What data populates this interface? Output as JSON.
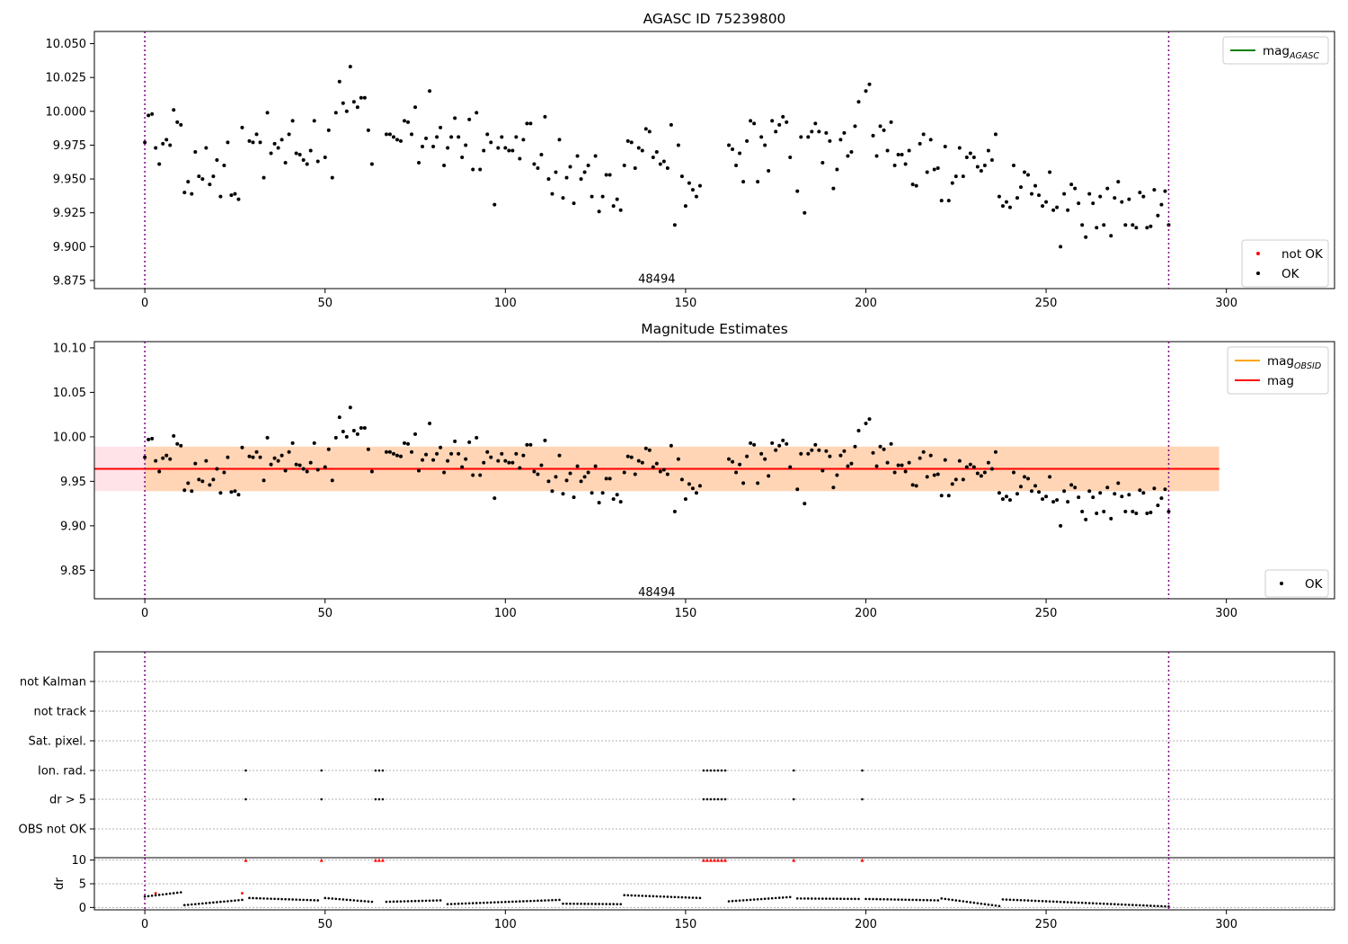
{
  "chart_data": [
    {
      "type": "scatter",
      "title": "AGASC ID 75239800",
      "xlim": [
        -14,
        330
      ],
      "ylim": [
        9.869,
        10.059
      ],
      "xticks": [
        0,
        50,
        100,
        150,
        200,
        250,
        300
      ],
      "yticks": [
        "9.875",
        "9.900",
        "9.925",
        "9.950",
        "9.975",
        "10.000",
        "10.025",
        "10.050"
      ],
      "vlines": [
        0,
        284
      ],
      "annotation": {
        "text": "48494",
        "x": 142,
        "y": 9.876
      },
      "legends": [
        {
          "position": "upper right",
          "entries": [
            {
              "label": "mag",
              "sub": "AGASC",
              "kind": "line",
              "color": "#008000"
            }
          ]
        },
        {
          "position": "lower right",
          "entries": [
            {
              "label": "not OK",
              "kind": "marker",
              "color": "#ff0000"
            },
            {
              "label": "OK",
              "kind": "marker",
              "color": "#000000"
            }
          ]
        }
      ],
      "series": [
        {
          "name": "OK",
          "color": "#000000",
          "points_ref": "mag_points"
        }
      ]
    },
    {
      "type": "scatter",
      "title": "Magnitude Estimates",
      "xlim": [
        -14,
        330
      ],
      "ylim": [
        9.818,
        10.107
      ],
      "xticks": [
        0,
        50,
        100,
        150,
        200,
        250,
        300
      ],
      "yticks": [
        "9.85",
        "9.90",
        "9.95",
        "10.00",
        "10.05",
        "10.10"
      ],
      "vlines": [
        0,
        284
      ],
      "annotation": {
        "text": "48494",
        "x": 142,
        "y": 9.825
      },
      "band": {
        "x0": -14,
        "x1": 298,
        "y0": 9.939,
        "y1": 9.989
      },
      "inner_band": {
        "x0": 0,
        "x1": 298
      },
      "mag_line": {
        "y": 9.964,
        "x0": -14,
        "x1": 298
      },
      "legends": [
        {
          "position": "upper right",
          "entries": [
            {
              "label": "mag",
              "sub": "OBSID",
              "kind": "line",
              "color": "#ffa500"
            },
            {
              "label": "mag",
              "kind": "line",
              "color": "#ff0000"
            }
          ]
        },
        {
          "position": "lower right",
          "entries": [
            {
              "label": "OK",
              "kind": "marker",
              "color": "#000000"
            }
          ]
        }
      ],
      "series": [
        {
          "name": "OK",
          "color": "#000000",
          "points_ref": "mag_points"
        }
      ]
    },
    {
      "type": "scatter",
      "xlim": [
        -14,
        330
      ],
      "categories": [
        "not Kalman",
        "not track",
        "Sat. pixel.",
        "Ion. rad.",
        "dr > 5",
        "OBS not OK"
      ],
      "flag_points": {
        "Ion. rad.": [
          28,
          49,
          64,
          65,
          66,
          155,
          156,
          157,
          158,
          159,
          160,
          161,
          180,
          199
        ],
        "dr > 5": [
          28,
          49,
          64,
          65,
          66,
          155,
          156,
          157,
          158,
          159,
          160,
          161,
          180,
          199
        ]
      },
      "vlines": [
        0,
        284
      ]
    },
    {
      "type": "scatter",
      "ylabel": "dr",
      "xlim": [
        -14,
        330
      ],
      "ylim": [
        -0.5,
        10.5
      ],
      "xticks": [
        0,
        50,
        100,
        150,
        200,
        250,
        300
      ],
      "yticks": [
        "0",
        "5",
        "10"
      ],
      "vlines": [
        0,
        284
      ],
      "capped": {
        "y": 10,
        "color": "#ff0000",
        "x": [
          28,
          49,
          64,
          65,
          66,
          155,
          156,
          157,
          158,
          159,
          160,
          161,
          180,
          199
        ]
      },
      "segments": [
        {
          "x0": 0,
          "x1": 10,
          "y0": 2.3,
          "y1": 3.2
        },
        {
          "x0": 11,
          "x1": 27,
          "y0": 0.5,
          "y1": 1.6
        },
        {
          "x0": 29,
          "x1": 48,
          "y0": 2.0,
          "y1": 1.5
        },
        {
          "x0": 50,
          "x1": 63,
          "y0": 2.0,
          "y1": 1.2
        },
        {
          "x0": 67,
          "x1": 82,
          "y0": 1.2,
          "y1": 1.5
        },
        {
          "x0": 84,
          "x1": 115,
          "y0": 0.7,
          "y1": 1.6
        },
        {
          "x0": 116,
          "x1": 132,
          "y0": 0.8,
          "y1": 0.7
        },
        {
          "x0": 133,
          "x1": 154,
          "y0": 2.6,
          "y1": 2.0
        },
        {
          "x0": 162,
          "x1": 179,
          "y0": 1.3,
          "y1": 2.2
        },
        {
          "x0": 181,
          "x1": 198,
          "y0": 1.9,
          "y1": 1.8
        },
        {
          "x0": 200,
          "x1": 220,
          "y0": 1.8,
          "y1": 1.5
        },
        {
          "x0": 221,
          "x1": 237,
          "y0": 1.9,
          "y1": 0.3
        },
        {
          "x0": 238,
          "x1": 284,
          "y0": 1.7,
          "y1": 0.2
        }
      ],
      "red_points": [
        [
          3,
          3.0
        ],
        [
          27,
          3.0
        ]
      ]
    }
  ],
  "mag_points": [
    [
      0,
      9.977
    ],
    [
      1,
      9.997
    ],
    [
      2,
      9.998
    ],
    [
      3,
      9.973
    ],
    [
      4,
      9.961
    ],
    [
      5,
      9.976
    ],
    [
      6,
      9.979
    ],
    [
      7,
      9.975
    ],
    [
      8,
      10.001
    ],
    [
      9,
      9.992
    ],
    [
      10,
      9.99
    ],
    [
      11,
      9.94
    ],
    [
      12,
      9.948
    ],
    [
      13,
      9.939
    ],
    [
      14,
      9.97
    ],
    [
      15,
      9.952
    ],
    [
      16,
      9.95
    ],
    [
      17,
      9.973
    ],
    [
      18,
      9.946
    ],
    [
      19,
      9.952
    ],
    [
      20,
      9.964
    ],
    [
      21,
      9.937
    ],
    [
      22,
      9.96
    ],
    [
      23,
      9.977
    ],
    [
      24,
      9.938
    ],
    [
      25,
      9.939
    ],
    [
      26,
      9.935
    ],
    [
      27,
      9.988
    ],
    [
      29,
      9.978
    ],
    [
      30,
      9.977
    ],
    [
      31,
      9.983
    ],
    [
      32,
      9.977
    ],
    [
      33,
      9.951
    ],
    [
      34,
      9.999
    ],
    [
      35,
      9.969
    ],
    [
      36,
      9.976
    ],
    [
      37,
      9.973
    ],
    [
      38,
      9.979
    ],
    [
      39,
      9.962
    ],
    [
      40,
      9.983
    ],
    [
      41,
      9.993
    ],
    [
      42,
      9.969
    ],
    [
      43,
      9.968
    ],
    [
      44,
      9.964
    ],
    [
      45,
      9.961
    ],
    [
      46,
      9.971
    ],
    [
      47,
      9.993
    ],
    [
      48,
      9.963
    ],
    [
      50,
      9.966
    ],
    [
      51,
      9.986
    ],
    [
      52,
      9.951
    ],
    [
      53,
      9.999
    ],
    [
      54,
      10.022
    ],
    [
      55,
      10.006
    ],
    [
      56,
      10.0
    ],
    [
      57,
      10.033
    ],
    [
      58,
      10.007
    ],
    [
      59,
      10.003
    ],
    [
      60,
      10.01
    ],
    [
      61,
      10.01
    ],
    [
      62,
      9.986
    ],
    [
      63,
      9.961
    ],
    [
      67,
      9.983
    ],
    [
      68,
      9.983
    ],
    [
      69,
      9.981
    ],
    [
      70,
      9.979
    ],
    [
      71,
      9.978
    ],
    [
      72,
      9.993
    ],
    [
      73,
      9.992
    ],
    [
      74,
      9.983
    ],
    [
      75,
      10.003
    ],
    [
      76,
      9.962
    ],
    [
      77,
      9.974
    ],
    [
      78,
      9.98
    ],
    [
      79,
      10.015
    ],
    [
      80,
      9.974
    ],
    [
      81,
      9.981
    ],
    [
      82,
      9.988
    ],
    [
      83,
      9.96
    ],
    [
      84,
      9.973
    ],
    [
      85,
      9.981
    ],
    [
      86,
      9.995
    ],
    [
      87,
      9.981
    ],
    [
      88,
      9.966
    ],
    [
      89,
      9.975
    ],
    [
      90,
      9.994
    ],
    [
      91,
      9.957
    ],
    [
      92,
      9.999
    ],
    [
      93,
      9.957
    ],
    [
      94,
      9.971
    ],
    [
      95,
      9.983
    ],
    [
      96,
      9.977
    ],
    [
      97,
      9.931
    ],
    [
      98,
      9.973
    ],
    [
      99,
      9.981
    ],
    [
      100,
      9.973
    ],
    [
      101,
      9.971
    ],
    [
      102,
      9.971
    ],
    [
      103,
      9.981
    ],
    [
      104,
      9.965
    ],
    [
      105,
      9.979
    ],
    [
      106,
      9.991
    ],
    [
      107,
      9.991
    ],
    [
      108,
      9.961
    ],
    [
      109,
      9.958
    ],
    [
      110,
      9.968
    ],
    [
      111,
      9.996
    ],
    [
      112,
      9.95
    ],
    [
      113,
      9.939
    ],
    [
      114,
      9.955
    ],
    [
      115,
      9.979
    ],
    [
      116,
      9.936
    ],
    [
      117,
      9.951
    ],
    [
      118,
      9.959
    ],
    [
      119,
      9.932
    ],
    [
      120,
      9.967
    ],
    [
      121,
      9.95
    ],
    [
      122,
      9.955
    ],
    [
      123,
      9.96
    ],
    [
      124,
      9.937
    ],
    [
      125,
      9.967
    ],
    [
      126,
      9.926
    ],
    [
      127,
      9.937
    ],
    [
      128,
      9.953
    ],
    [
      129,
      9.953
    ],
    [
      130,
      9.93
    ],
    [
      131,
      9.935
    ],
    [
      132,
      9.927
    ],
    [
      133,
      9.96
    ],
    [
      134,
      9.978
    ],
    [
      135,
      9.977
    ],
    [
      136,
      9.958
    ],
    [
      137,
      9.973
    ],
    [
      138,
      9.971
    ],
    [
      139,
      9.987
    ],
    [
      140,
      9.985
    ],
    [
      141,
      9.966
    ],
    [
      142,
      9.97
    ],
    [
      143,
      9.961
    ],
    [
      144,
      9.963
    ],
    [
      145,
      9.958
    ],
    [
      146,
      9.99
    ],
    [
      147,
      9.916
    ],
    [
      148,
      9.975
    ],
    [
      149,
      9.952
    ],
    [
      150,
      9.93
    ],
    [
      151,
      9.947
    ],
    [
      152,
      9.942
    ],
    [
      153,
      9.937
    ],
    [
      154,
      9.945
    ],
    [
      162,
      9.975
    ],
    [
      163,
      9.972
    ],
    [
      164,
      9.96
    ],
    [
      165,
      9.969
    ],
    [
      166,
      9.948
    ],
    [
      167,
      9.978
    ],
    [
      168,
      9.993
    ],
    [
      169,
      9.991
    ],
    [
      170,
      9.948
    ],
    [
      171,
      9.981
    ],
    [
      172,
      9.975
    ],
    [
      173,
      9.956
    ],
    [
      174,
      9.993
    ],
    [
      175,
      9.985
    ],
    [
      176,
      9.99
    ],
    [
      177,
      9.996
    ],
    [
      178,
      9.992
    ],
    [
      179,
      9.966
    ],
    [
      181,
      9.941
    ],
    [
      182,
      9.981
    ],
    [
      183,
      9.925
    ],
    [
      184,
      9.981
    ],
    [
      185,
      9.985
    ],
    [
      186,
      9.991
    ],
    [
      187,
      9.985
    ],
    [
      188,
      9.962
    ],
    [
      189,
      9.984
    ],
    [
      190,
      9.978
    ],
    [
      191,
      9.943
    ],
    [
      192,
      9.957
    ],
    [
      193,
      9.979
    ],
    [
      194,
      9.984
    ],
    [
      195,
      9.967
    ],
    [
      196,
      9.97
    ],
    [
      197,
      9.989
    ],
    [
      198,
      10.007
    ],
    [
      200,
      10.015
    ],
    [
      201,
      10.02
    ],
    [
      202,
      9.982
    ],
    [
      203,
      9.967
    ],
    [
      204,
      9.989
    ],
    [
      205,
      9.986
    ],
    [
      206,
      9.971
    ],
    [
      207,
      9.992
    ],
    [
      208,
      9.96
    ],
    [
      209,
      9.968
    ],
    [
      210,
      9.968
    ],
    [
      211,
      9.961
    ],
    [
      212,
      9.971
    ],
    [
      213,
      9.946
    ],
    [
      214,
      9.945
    ],
    [
      215,
      9.976
    ],
    [
      216,
      9.983
    ],
    [
      217,
      9.955
    ],
    [
      218,
      9.979
    ],
    [
      219,
      9.957
    ],
    [
      220,
      9.958
    ],
    [
      221,
      9.934
    ],
    [
      222,
      9.974
    ],
    [
      223,
      9.934
    ],
    [
      224,
      9.947
    ],
    [
      225,
      9.952
    ],
    [
      226,
      9.973
    ],
    [
      227,
      9.952
    ],
    [
      228,
      9.966
    ],
    [
      229,
      9.969
    ],
    [
      230,
      9.966
    ],
    [
      231,
      9.959
    ],
    [
      232,
      9.956
    ],
    [
      233,
      9.96
    ],
    [
      234,
      9.971
    ],
    [
      235,
      9.964
    ],
    [
      236,
      9.983
    ],
    [
      237,
      9.937
    ],
    [
      238,
      9.93
    ],
    [
      239,
      9.933
    ],
    [
      240,
      9.929
    ],
    [
      241,
      9.96
    ],
    [
      242,
      9.936
    ],
    [
      243,
      9.944
    ],
    [
      244,
      9.955
    ],
    [
      245,
      9.953
    ],
    [
      246,
      9.939
    ],
    [
      247,
      9.945
    ],
    [
      248,
      9.938
    ],
    [
      249,
      9.93
    ],
    [
      250,
      9.933
    ],
    [
      251,
      9.955
    ],
    [
      252,
      9.927
    ],
    [
      253,
      9.929
    ],
    [
      254,
      9.9
    ],
    [
      255,
      9.939
    ],
    [
      256,
      9.927
    ],
    [
      257,
      9.946
    ],
    [
      258,
      9.943
    ],
    [
      259,
      9.932
    ],
    [
      260,
      9.916
    ],
    [
      261,
      9.907
    ],
    [
      262,
      9.939
    ],
    [
      263,
      9.932
    ],
    [
      264,
      9.914
    ],
    [
      265,
      9.937
    ],
    [
      266,
      9.916
    ],
    [
      267,
      9.943
    ],
    [
      268,
      9.908
    ],
    [
      269,
      9.936
    ],
    [
      270,
      9.948
    ],
    [
      271,
      9.933
    ],
    [
      272,
      9.916
    ],
    [
      273,
      9.935
    ],
    [
      274,
      9.916
    ],
    [
      275,
      9.914
    ],
    [
      276,
      9.94
    ],
    [
      277,
      9.937
    ],
    [
      278,
      9.914
    ],
    [
      279,
      9.915
    ],
    [
      280,
      9.942
    ],
    [
      281,
      9.923
    ],
    [
      282,
      9.931
    ],
    [
      283,
      9.941
    ],
    [
      284,
      9.916
    ]
  ]
}
